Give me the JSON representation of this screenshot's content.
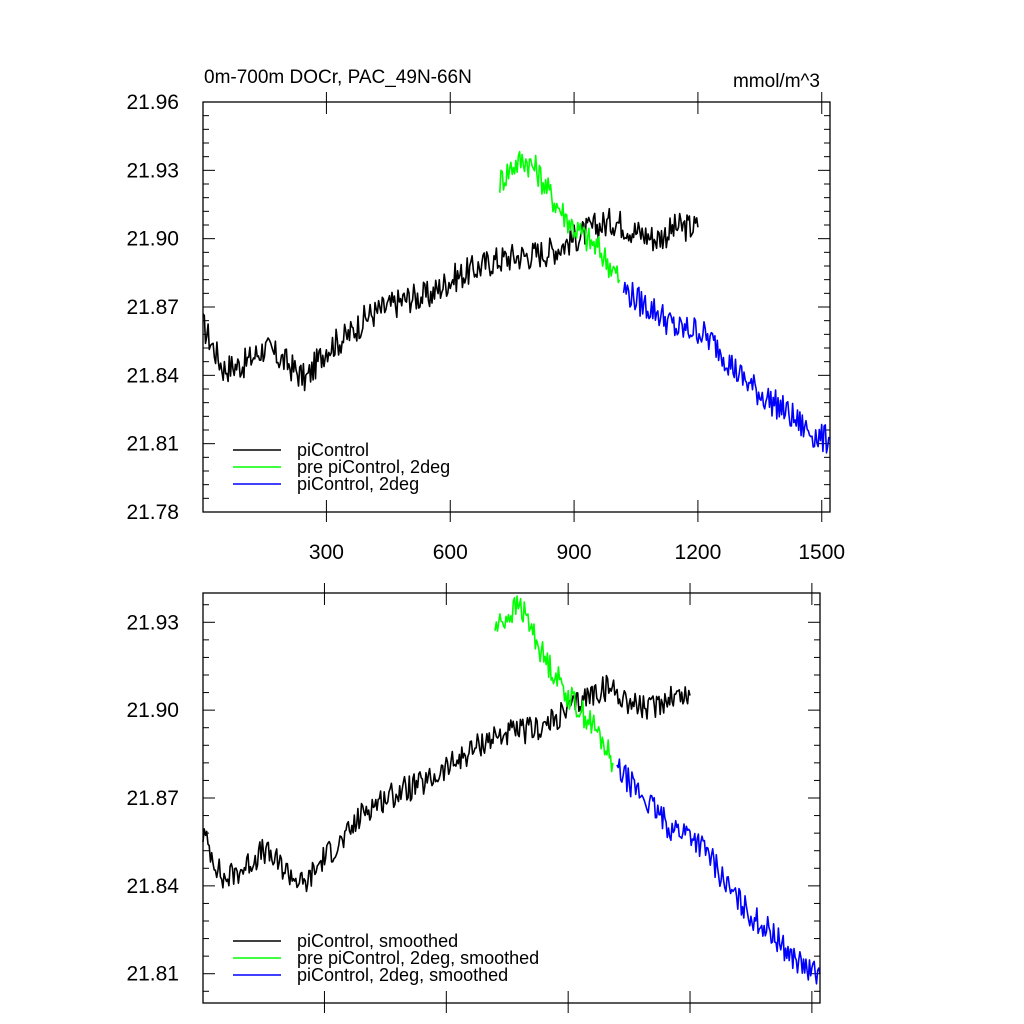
{
  "chart_data": [
    {
      "type": "line",
      "title": "0m-700m DOCr, PAC_49N-66N",
      "units": "mmol/m^3",
      "xlim": [
        1,
        1520
      ],
      "ylim": [
        21.78,
        21.96
      ],
      "xticks": [
        300,
        600,
        900,
        1200,
        1500
      ],
      "xtick_labels": [
        "300",
        "600",
        "900",
        "1200",
        "1500"
      ],
      "yticks": [
        21.78,
        21.81,
        21.84,
        21.87,
        21.9,
        21.93,
        21.96
      ],
      "ytick_labels": [
        "21.78",
        "21.81",
        "21.84",
        "21.87",
        "21.90",
        "21.93",
        "21.96"
      ],
      "legend_position": "bottom-left",
      "series": [
        {
          "name": "piControl",
          "color": "#000000",
          "x": [
            1,
            50,
            100,
            150,
            200,
            250,
            300,
            350,
            400,
            450,
            500,
            550,
            600,
            650,
            700,
            750,
            800,
            850,
            900,
            950,
            1000,
            1050,
            1100,
            1150,
            1200
          ],
          "values": [
            21.862,
            21.843,
            21.845,
            21.852,
            21.846,
            21.838,
            21.852,
            21.857,
            21.866,
            21.87,
            21.874,
            21.875,
            21.882,
            21.886,
            21.89,
            21.892,
            21.893,
            21.895,
            21.9,
            21.905,
            21.908,
            21.903,
            21.9,
            21.905,
            21.905
          ]
        },
        {
          "name": "pre piControl, 2deg",
          "color": "#00ff00",
          "x": [
            720,
            750,
            780,
            810,
            840,
            870,
            900,
            930,
            960,
            990,
            1010
          ],
          "values": [
            21.925,
            21.932,
            21.935,
            21.93,
            21.92,
            21.912,
            21.905,
            21.9,
            21.895,
            21.888,
            21.882
          ]
        },
        {
          "name": "piControl, 2deg",
          "color": "#0000ff",
          "x": [
            1020,
            1060,
            1100,
            1150,
            1200,
            1250,
            1300,
            1350,
            1400,
            1450,
            1500,
            1520
          ],
          "values": [
            21.878,
            21.872,
            21.868,
            21.86,
            21.86,
            21.852,
            21.84,
            21.832,
            21.826,
            21.818,
            21.812,
            21.812
          ]
        }
      ]
    },
    {
      "type": "line",
      "title": "",
      "xlim": [
        1,
        1520
      ],
      "ylim": [
        21.8,
        21.94
      ],
      "xticks": [
        300,
        600,
        900,
        1200,
        1500
      ],
      "xtick_labels": [],
      "yticks": [
        21.81,
        21.84,
        21.87,
        21.9,
        21.93
      ],
      "ytick_labels": [
        "21.81",
        "21.84",
        "21.87",
        "21.90",
        "21.93"
      ],
      "legend_position": "bottom-left",
      "series": [
        {
          "name": "piControl, smoothed",
          "color": "#000000",
          "x": [
            1,
            50,
            100,
            150,
            200,
            250,
            300,
            350,
            400,
            450,
            500,
            550,
            600,
            650,
            700,
            750,
            800,
            850,
            900,
            950,
            1000,
            1050,
            1100,
            1150,
            1200
          ],
          "values": [
            21.858,
            21.842,
            21.846,
            21.852,
            21.846,
            21.84,
            21.85,
            21.856,
            21.866,
            21.87,
            21.873,
            21.875,
            21.88,
            21.885,
            21.89,
            21.892,
            21.893,
            21.895,
            21.9,
            21.905,
            21.908,
            21.903,
            21.9,
            21.905,
            21.905
          ]
        },
        {
          "name": "pre piControl, 2deg, smoothed",
          "color": "#00ff00",
          "x": [
            720,
            750,
            780,
            810,
            840,
            870,
            900,
            930,
            960,
            990,
            1010
          ],
          "values": [
            21.928,
            21.932,
            21.936,
            21.928,
            21.918,
            21.912,
            21.905,
            21.9,
            21.895,
            21.888,
            21.882
          ]
        },
        {
          "name": "piControl, 2deg, smoothed",
          "color": "#0000ff",
          "x": [
            1020,
            1060,
            1100,
            1150,
            1200,
            1250,
            1300,
            1350,
            1400,
            1450,
            1500,
            1520
          ],
          "values": [
            21.88,
            21.874,
            21.868,
            21.86,
            21.858,
            21.85,
            21.838,
            21.83,
            21.824,
            21.816,
            21.81,
            21.81
          ]
        }
      ]
    }
  ]
}
